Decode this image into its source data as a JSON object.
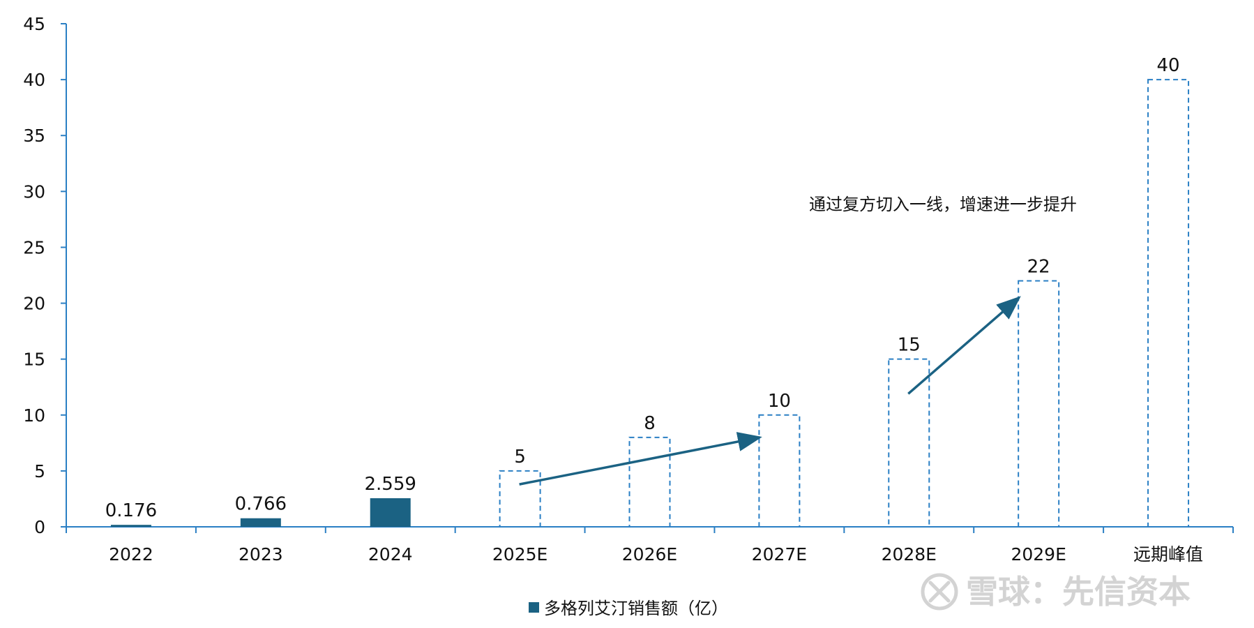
{
  "colors": {
    "actual": "#1b6283",
    "estimate": "#2a7fc4",
    "axis": "#2a7fc4",
    "arrow": "#1b6283",
    "text": "#111111",
    "watermark": "#cfcfcf"
  },
  "chart_data": {
    "type": "bar",
    "title": "",
    "xlabel": "",
    "ylabel": "",
    "ylim": [
      0,
      45
    ],
    "yticks": [
      0,
      5,
      10,
      15,
      20,
      25,
      30,
      35,
      40,
      45
    ],
    "categories": [
      "2022",
      "2023",
      "2024",
      "2025E",
      "2026E",
      "2027E",
      "2028E",
      "2029E",
      "远期峰值"
    ],
    "values": [
      0.176,
      0.766,
      2.559,
      5,
      8,
      10,
      15,
      22,
      40
    ],
    "data_labels": [
      "0.176",
      "0.766",
      "2.559",
      "5",
      "8",
      "10",
      "15",
      "22",
      "40"
    ],
    "bar_styles": [
      "solid",
      "solid",
      "solid",
      "dashed",
      "dashed",
      "dashed",
      "dashed",
      "dashed",
      "dashed"
    ],
    "series": [
      {
        "name": "多格列艾汀销售额（亿）",
        "values": [
          0.176,
          0.766,
          2.559,
          5,
          8,
          10,
          15,
          22,
          40
        ]
      }
    ],
    "legend_position": "bottom",
    "grid": false,
    "annotations": [
      {
        "text": "通过复方切入一线，增速进一步提升"
      }
    ],
    "trend_arrows": [
      {
        "from": {
          "x": "2025E",
          "y": 3.8
        },
        "to": {
          "x": "2027E",
          "y": 8.0
        }
      },
      {
        "from": {
          "x": "2028E",
          "y": 11.9
        },
        "to": {
          "x": "2029E",
          "y": 20.5
        }
      }
    ]
  },
  "watermark": {
    "icon": "xueqiu-logo-icon",
    "text": "雪球：先信资本"
  }
}
